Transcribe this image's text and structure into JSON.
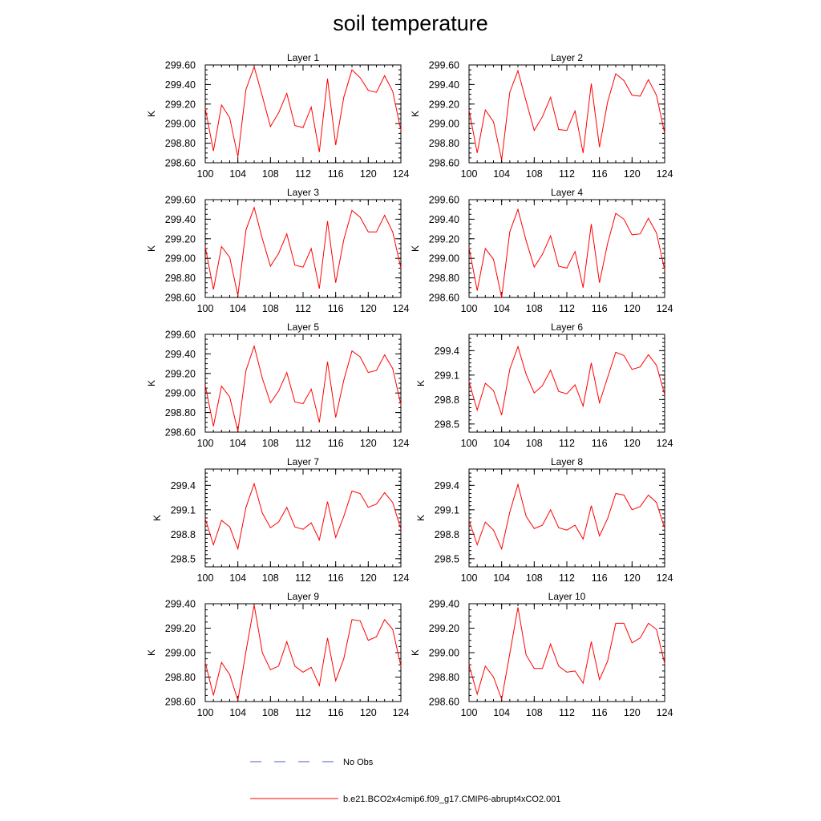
{
  "title": "soil temperature",
  "chart_data": [
    {
      "type": "line",
      "title": "Layer 1",
      "ylabel": "K",
      "x": [
        100,
        101,
        102,
        103,
        104,
        105,
        106,
        107,
        108,
        109,
        110,
        111,
        112,
        113,
        114,
        115,
        116,
        117,
        118,
        119,
        120,
        121,
        122,
        123,
        124
      ],
      "xticks": [
        100,
        104,
        108,
        112,
        116,
        120,
        124
      ],
      "xlim": [
        100,
        124
      ],
      "ylim": [
        298.6,
        299.6
      ],
      "yticks": [
        "298.60",
        "298.80",
        "299.00",
        "299.20",
        "299.40",
        "299.60"
      ],
      "series": [
        {
          "values": [
            299.16,
            298.72,
            299.19,
            299.06,
            298.66,
            299.35,
            299.58,
            299.28,
            298.97,
            299.11,
            299.31,
            298.98,
            298.96,
            299.17,
            298.71,
            299.46,
            298.78,
            299.27,
            299.55,
            299.47,
            299.34,
            299.32,
            299.49,
            299.33,
            298.93
          ]
        }
      ]
    },
    {
      "type": "line",
      "title": "Layer 2",
      "ylabel": "K",
      "x": [
        100,
        101,
        102,
        103,
        104,
        105,
        106,
        107,
        108,
        109,
        110,
        111,
        112,
        113,
        114,
        115,
        116,
        117,
        118,
        119,
        120,
        121,
        122,
        123,
        124
      ],
      "xticks": [
        100,
        104,
        108,
        112,
        116,
        120,
        124
      ],
      "xlim": [
        100,
        124
      ],
      "ylim": [
        298.6,
        299.6
      ],
      "yticks": [
        "298.60",
        "298.80",
        "299.00",
        "299.20",
        "299.40",
        "299.60"
      ],
      "series": [
        {
          "values": [
            299.14,
            298.7,
            299.14,
            299.02,
            298.63,
            299.32,
            299.54,
            299.23,
            298.93,
            299.07,
            299.27,
            298.94,
            298.93,
            299.13,
            298.7,
            299.41,
            298.76,
            299.22,
            299.51,
            299.44,
            299.29,
            299.28,
            299.45,
            299.29,
            298.9
          ]
        }
      ]
    },
    {
      "type": "line",
      "title": "Layer 3",
      "ylabel": "K",
      "x": [
        100,
        101,
        102,
        103,
        104,
        105,
        106,
        107,
        108,
        109,
        110,
        111,
        112,
        113,
        114,
        115,
        116,
        117,
        118,
        119,
        120,
        121,
        122,
        123,
        124
      ],
      "xticks": [
        100,
        104,
        108,
        112,
        116,
        120,
        124
      ],
      "xlim": [
        100,
        124
      ],
      "ylim": [
        298.6,
        299.6
      ],
      "yticks": [
        "298.60",
        "298.80",
        "299.00",
        "299.20",
        "299.40",
        "299.60"
      ],
      "series": [
        {
          "values": [
            299.12,
            298.68,
            299.12,
            299.01,
            298.62,
            299.29,
            299.52,
            299.2,
            298.92,
            299.05,
            299.25,
            298.93,
            298.91,
            299.1,
            298.69,
            299.38,
            298.75,
            299.19,
            299.49,
            299.42,
            299.27,
            299.27,
            299.44,
            299.27,
            298.9
          ]
        }
      ]
    },
    {
      "type": "line",
      "title": "Layer 4",
      "ylabel": "K",
      "x": [
        100,
        101,
        102,
        103,
        104,
        105,
        106,
        107,
        108,
        109,
        110,
        111,
        112,
        113,
        114,
        115,
        116,
        117,
        118,
        119,
        120,
        121,
        122,
        123,
        124
      ],
      "xticks": [
        100,
        104,
        108,
        112,
        116,
        120,
        124
      ],
      "xlim": [
        100,
        124
      ],
      "ylim": [
        298.6,
        299.6
      ],
      "yticks": [
        "298.60",
        "298.80",
        "299.00",
        "299.20",
        "299.40",
        "299.60"
      ],
      "series": [
        {
          "values": [
            299.11,
            298.67,
            299.1,
            298.99,
            298.6,
            299.27,
            299.5,
            299.18,
            298.91,
            299.04,
            299.23,
            298.92,
            298.9,
            299.07,
            298.7,
            299.35,
            298.75,
            299.15,
            299.46,
            299.4,
            299.24,
            299.25,
            299.41,
            299.26,
            298.88
          ]
        }
      ]
    },
    {
      "type": "line",
      "title": "Layer 5",
      "ylabel": "K",
      "x": [
        100,
        101,
        102,
        103,
        104,
        105,
        106,
        107,
        108,
        109,
        110,
        111,
        112,
        113,
        114,
        115,
        116,
        117,
        118,
        119,
        120,
        121,
        122,
        123,
        124
      ],
      "xticks": [
        100,
        104,
        108,
        112,
        116,
        120,
        124
      ],
      "xlim": [
        100,
        124
      ],
      "ylim": [
        298.6,
        299.6
      ],
      "yticks": [
        "298.60",
        "298.80",
        "299.00",
        "299.20",
        "299.40",
        "299.60"
      ],
      "series": [
        {
          "values": [
            299.08,
            298.66,
            299.07,
            298.96,
            298.61,
            299.23,
            299.48,
            299.15,
            298.9,
            299.02,
            299.21,
            298.91,
            298.89,
            299.04,
            298.7,
            299.32,
            298.75,
            299.13,
            299.43,
            299.37,
            299.21,
            299.23,
            299.39,
            299.25,
            298.88
          ]
        }
      ]
    },
    {
      "type": "line",
      "title": "Layer 6",
      "ylabel": "K",
      "x": [
        100,
        101,
        102,
        103,
        104,
        105,
        106,
        107,
        108,
        109,
        110,
        111,
        112,
        113,
        114,
        115,
        116,
        117,
        118,
        119,
        120,
        121,
        122,
        123,
        124
      ],
      "xticks": [
        100,
        104,
        108,
        112,
        116,
        120,
        124
      ],
      "xlim": [
        100,
        124
      ],
      "ylim": [
        298.4,
        299.6
      ],
      "yticks": [
        "298.5",
        "298.8",
        "299.1",
        "299.4"
      ],
      "series": [
        {
          "values": [
            299.02,
            298.67,
            299.0,
            298.91,
            298.61,
            299.17,
            299.45,
            299.11,
            298.88,
            298.97,
            299.16,
            298.9,
            298.87,
            298.98,
            298.72,
            299.25,
            298.76,
            299.07,
            299.38,
            299.34,
            299.17,
            299.2,
            299.35,
            299.22,
            298.86
          ]
        }
      ]
    },
    {
      "type": "line",
      "title": "Layer 7",
      "ylabel": "K",
      "x": [
        100,
        101,
        102,
        103,
        104,
        105,
        106,
        107,
        108,
        109,
        110,
        111,
        112,
        113,
        114,
        115,
        116,
        117,
        118,
        119,
        120,
        121,
        122,
        123,
        124
      ],
      "xticks": [
        100,
        104,
        108,
        112,
        116,
        120,
        124
      ],
      "xlim": [
        100,
        124
      ],
      "ylim": [
        298.4,
        299.6
      ],
      "yticks": [
        "298.5",
        "298.8",
        "299.1",
        "299.4"
      ],
      "series": [
        {
          "values": [
            298.99,
            298.67,
            298.97,
            298.89,
            298.62,
            299.13,
            299.42,
            299.06,
            298.88,
            298.95,
            299.13,
            298.89,
            298.86,
            298.94,
            298.73,
            299.2,
            298.76,
            299.02,
            299.33,
            299.3,
            299.13,
            299.17,
            299.31,
            299.19,
            298.86
          ]
        }
      ]
    },
    {
      "type": "line",
      "title": "Layer 8",
      "ylabel": "K",
      "x": [
        100,
        101,
        102,
        103,
        104,
        105,
        106,
        107,
        108,
        109,
        110,
        111,
        112,
        113,
        114,
        115,
        116,
        117,
        118,
        119,
        120,
        121,
        122,
        123,
        124
      ],
      "xticks": [
        100,
        104,
        108,
        112,
        116,
        120,
        124
      ],
      "xlim": [
        100,
        124
      ],
      "ylim": [
        298.4,
        299.6
      ],
      "yticks": [
        "298.5",
        "298.8",
        "299.1",
        "299.4"
      ],
      "series": [
        {
          "values": [
            298.97,
            298.67,
            298.95,
            298.85,
            298.62,
            299.07,
            299.41,
            299.02,
            298.87,
            298.91,
            299.1,
            298.88,
            298.85,
            298.91,
            298.74,
            299.15,
            298.78,
            298.99,
            299.3,
            299.28,
            299.1,
            299.14,
            299.28,
            299.19,
            298.87
          ]
        }
      ]
    },
    {
      "type": "line",
      "title": "Layer 9",
      "ylabel": "K",
      "x": [
        100,
        101,
        102,
        103,
        104,
        105,
        106,
        107,
        108,
        109,
        110,
        111,
        112,
        113,
        114,
        115,
        116,
        117,
        118,
        119,
        120,
        121,
        122,
        123,
        124
      ],
      "xticks": [
        100,
        104,
        108,
        112,
        116,
        120,
        124
      ],
      "xlim": [
        100,
        124
      ],
      "ylim": [
        298.6,
        299.4
      ],
      "yticks": [
        "298.60",
        "298.80",
        "299.00",
        "299.20",
        "299.40"
      ],
      "series": [
        {
          "values": [
            298.92,
            298.65,
            298.92,
            298.82,
            298.61,
            299.01,
            299.39,
            299.0,
            298.86,
            298.89,
            299.09,
            298.89,
            298.84,
            298.88,
            298.73,
            299.12,
            298.77,
            298.95,
            299.27,
            299.26,
            299.1,
            299.13,
            299.27,
            299.19,
            298.89
          ]
        }
      ]
    },
    {
      "type": "line",
      "title": "Layer 10",
      "ylabel": "K",
      "x": [
        100,
        101,
        102,
        103,
        104,
        105,
        106,
        107,
        108,
        109,
        110,
        111,
        112,
        113,
        114,
        115,
        116,
        117,
        118,
        119,
        120,
        121,
        122,
        123,
        124
      ],
      "xticks": [
        100,
        104,
        108,
        112,
        116,
        120,
        124
      ],
      "xlim": [
        100,
        124
      ],
      "ylim": [
        298.6,
        299.4
      ],
      "yticks": [
        "298.60",
        "298.80",
        "299.00",
        "299.20",
        "299.40"
      ],
      "series": [
        {
          "values": [
            298.9,
            298.66,
            298.89,
            298.8,
            298.62,
            298.99,
            299.37,
            298.98,
            298.87,
            298.87,
            299.07,
            298.89,
            298.84,
            298.85,
            298.75,
            299.09,
            298.78,
            298.93,
            299.24,
            299.24,
            299.08,
            299.12,
            299.24,
            299.19,
            298.91
          ]
        }
      ]
    }
  ],
  "legend": [
    {
      "label": "No Obs",
      "color": "#4a5fc1",
      "style": "dashed"
    },
    {
      "label": "b.e21.BCO2x4cmip6.f09_g17.CMIP6-abrupt4xCO2.001",
      "color": "#ff0000",
      "style": "solid"
    }
  ],
  "colors": {
    "series": "#ff0000",
    "axes": "#000000"
  }
}
